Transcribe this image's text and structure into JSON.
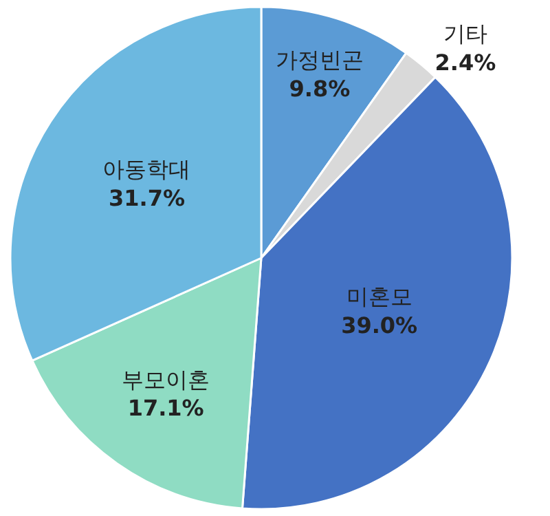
{
  "chart_data": {
    "type": "pie",
    "categories": [
      "가정빈곤",
      "기타",
      "미혼모",
      "부모이혼",
      "아동학대"
    ],
    "values": [
      9.8,
      2.4,
      39.0,
      17.1,
      31.7
    ],
    "value_labels": [
      "9.8%",
      "2.4%",
      "39.0%",
      "17.1%",
      "31.7%"
    ],
    "colors": [
      "#5b9bd5",
      "#d9d9d9",
      "#4472c4",
      "#8fdcc3",
      "#6cb8e0"
    ],
    "legend": false
  }
}
